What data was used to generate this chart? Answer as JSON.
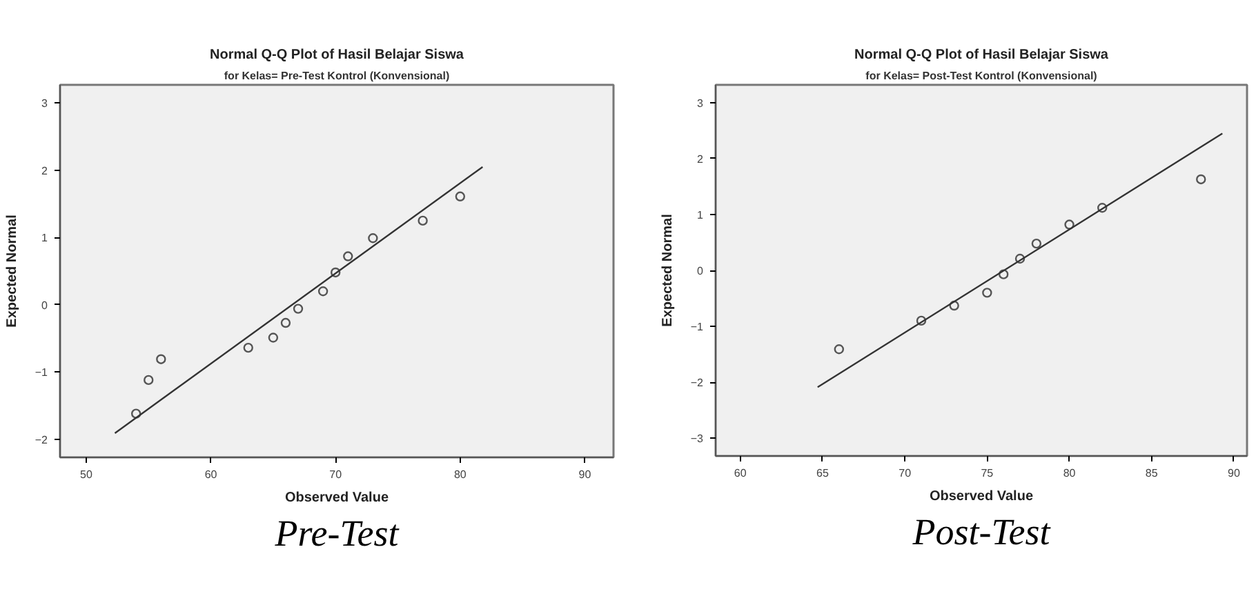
{
  "chart_data": [
    {
      "type": "scatter",
      "title": "Normal Q-Q Plot of Hasil Belajar Siswa",
      "subtitle": "for Kelas= Pre-Test Kontrol (Konvensional)",
      "xlabel": "Observed Value",
      "ylabel": "Expected Normal",
      "xlim": [
        47.9,
        92.3
      ],
      "ylim": [
        -2.27,
        3.27
      ],
      "xticks": [
        50,
        60,
        70,
        80,
        90
      ],
      "yticks": [
        -2,
        -1,
        0,
        1,
        2,
        3
      ],
      "grid": false,
      "series": [
        {
          "marker": "circle",
          "color": "#555555",
          "x": [
            54,
            55,
            56,
            63,
            65,
            66,
            67,
            69,
            70,
            71,
            73,
            77,
            80
          ],
          "values": [
            -1.62,
            -1.12,
            -0.81,
            -0.64,
            -0.49,
            -0.27,
            -0.06,
            0.2,
            0.48,
            0.72,
            0.99,
            1.25,
            1.61
          ]
        },
        {
          "type": "line",
          "color": "#333333",
          "x": [
            52.3,
            81.8
          ],
          "values": [
            -1.91,
            2.05
          ]
        }
      ],
      "annotations": [
        "Pre-Test"
      ]
    },
    {
      "type": "scatter",
      "title": "Normal Q-Q Plot of Hasil Belajar Siswa",
      "subtitle": "for Kelas= Post-Test Kontrol (Konvensional)",
      "xlabel": "Observed Value",
      "ylabel": "Expected Normal",
      "xlim": [
        58.5,
        90.8
      ],
      "ylim": [
        -3.32,
        3.32
      ],
      "xticks": [
        60,
        65,
        70,
        75,
        80,
        85,
        90
      ],
      "yticks": [
        -3,
        -2,
        -1,
        0,
        1,
        2,
        3
      ],
      "grid": false,
      "series": [
        {
          "marker": "circle",
          "color": "#555555",
          "x": [
            66,
            71,
            73,
            75,
            76,
            77,
            78,
            80,
            82,
            88
          ],
          "values": [
            -1.41,
            -0.9,
            -0.63,
            -0.4,
            -0.07,
            0.21,
            0.48,
            0.82,
            1.12,
            1.63
          ]
        },
        {
          "type": "line",
          "color": "#333333",
          "x": [
            64.7,
            89.3
          ],
          "values": [
            -2.09,
            2.45
          ]
        }
      ],
      "annotations": [
        "Post-Test"
      ]
    }
  ]
}
